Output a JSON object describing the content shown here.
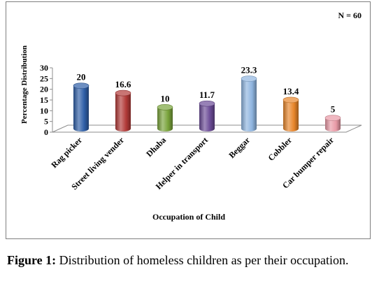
{
  "chart_data": {
    "type": "bar",
    "categories": [
      "Rag picker",
      "Street living vender",
      "Dhaba",
      "Helper in transport",
      "Beggar",
      "Cobbler",
      "Car bumper repair"
    ],
    "values": [
      20,
      16.6,
      10,
      11.7,
      23.3,
      13.4,
      5
    ],
    "data_labels": [
      "20",
      "16.6",
      "10",
      "11.7",
      "23.3",
      "13.4",
      "5"
    ],
    "colors": [
      "#2f5fa8",
      "#b23a38",
      "#79a33b",
      "#6b4b96",
      "#8fb5e0",
      "#e8862a",
      "#e99aa6"
    ],
    "ylabel": "Percentage Distribution",
    "xlabel": "Occupation of Child",
    "ylim": [
      0,
      30
    ],
    "yticks": [
      "0",
      "5",
      "10",
      "15",
      "20",
      "25",
      "30"
    ],
    "annotation": "N = 60",
    "grid": false,
    "legend": "none",
    "style": "3d-cylinder"
  },
  "caption": {
    "label": "Figure 1:",
    "text": "Distribution of homeless children as per their occupation."
  }
}
